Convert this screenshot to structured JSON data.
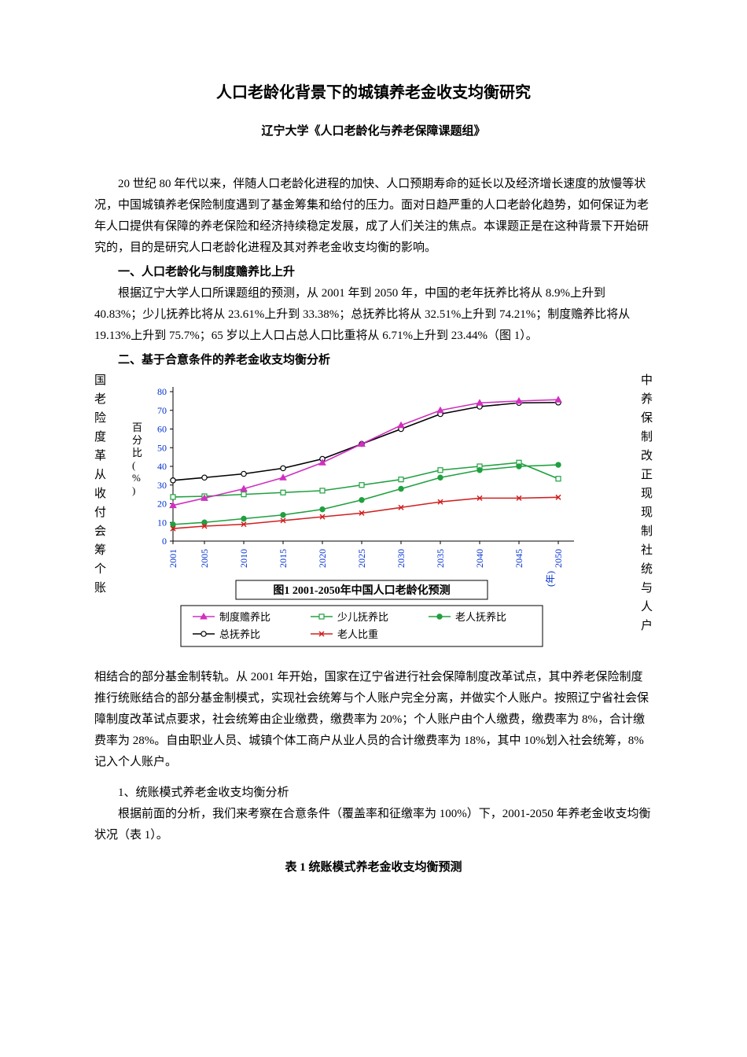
{
  "title": "人口老龄化背景下的城镇养老金收支均衡研究",
  "subtitle": "辽宁大学《人口老龄化与养老保障课题组》",
  "intro_para": "20 世纪 80 年代以来，伴随人口老龄化进程的加快、人口预期寿命的延长以及经济增长速度的放慢等状况，中国城镇养老保险制度遇到了基金筹集和给付的压力。面对日趋严重的人口老龄化趋势，如何保证为老年人口提供有保障的养老保险和经济持续稳定发展，成了人们关注的焦点。本课题正是在这种背景下开始研究的，目的是研究人口老龄化进程及其对养老金收支均衡的影响。",
  "sec1_head": "一、人口老龄化与制度赡养比上升",
  "sec1_para": "根据辽宁大学人口所课题组的预测，从 2001 年到 2050 年，中国的老年抚养比将从 8.9%上升到 40.83%；少儿抚养比将从 23.61%上升到 33.38%；总抚养比将从 32.51%上升到 74.21%；制度赡养比将从 19.13%上升到 75.7%；65 岁以上人口占总人口比重将从 6.71%上升到 23.44%（图 1）。",
  "sec2_head": "二、基于合意条件的养老金收支均衡分析",
  "wrap_left_chars": [
    "国",
    "老",
    "险",
    "度",
    "革",
    "从",
    "收",
    "付",
    "会",
    "筹",
    "个",
    "账"
  ],
  "wrap_right_chars": [
    "中",
    "养",
    "保",
    "制",
    "改",
    "正",
    "现",
    "现",
    "制",
    "社",
    "统",
    "与",
    "人",
    "户"
  ],
  "after_chart_para": "相结合的部分基金制转轨。从 2001 年开始，国家在辽宁省进行社会保障制度改革试点，其中养老保险制度推行统账结合的部分基金制模式，实现社会统筹与个人账户完全分离，并做实个人账户。按照辽宁省社会保障制度改革试点要求，社会统筹由企业缴费，缴费率为 20%；个人账户由个人缴费，缴费率为 8%，合计缴费率为 28%。自由职业人员、城镇个体工商户从业人员的合计缴费率为 18%，其中 10%划入社会统筹，8%记入个人账户。",
  "sub1_para1": "1、统账模式养老金收支均衡分析",
  "sub1_para2": "根据前面的分析，我们来考察在合意条件（覆盖率和征缴率为 100%）下，2001-2050 年养老金收支均衡状况（表 1）。",
  "table1_caption": "表 1 统账模式养老金收支均衡预测",
  "chart": {
    "type": "line",
    "title": "图1 2001-2050年中国人口老龄化预测",
    "y_axis_label": "百分比(%)",
    "x_unit": "(年)",
    "xlim": [
      2001,
      2050
    ],
    "ylim": [
      0,
      80
    ],
    "ytick_step": 10,
    "yticks": [
      0,
      10,
      20,
      30,
      40,
      50,
      60,
      70,
      80
    ],
    "xticks": [
      2001,
      2005,
      2010,
      2015,
      2020,
      2025,
      2030,
      2035,
      2040,
      2045,
      2050
    ],
    "background_color": "#ffffff",
    "axis_color": "#000000",
    "tick_label_color": "#0030d0",
    "series": [
      {
        "name": "制度赡养比",
        "color": "#d030c0",
        "marker": "triangle",
        "values": [
          19.13,
          23,
          28,
          34,
          42,
          52,
          62,
          70,
          74,
          75,
          75.7
        ]
      },
      {
        "name": "少儿抚养比",
        "color": "#20a040",
        "marker": "square-open",
        "values": [
          23.61,
          24,
          25,
          26,
          27,
          30,
          33,
          38,
          40,
          42,
          33.38
        ]
      },
      {
        "name": "老人抚养比",
        "color": "#20a040",
        "marker": "circle",
        "values": [
          8.9,
          10,
          12,
          14,
          17,
          22,
          28,
          34,
          38,
          40,
          40.83
        ]
      },
      {
        "name": "总抚养比",
        "color": "#000000",
        "marker": "circle-open",
        "values": [
          32.51,
          34,
          36,
          39,
          44,
          52,
          60,
          68,
          72,
          74,
          74.21
        ]
      },
      {
        "name": "老人比重",
        "color": "#d02020",
        "marker": "x",
        "values": [
          6.71,
          8,
          9,
          11,
          13,
          15,
          18,
          21,
          23,
          23,
          23.44
        ]
      }
    ],
    "legend_order": [
      [
        "制度赡养比",
        "少儿抚养比",
        "老人抚养比"
      ],
      [
        "总抚养比",
        "老人比重"
      ]
    ]
  }
}
